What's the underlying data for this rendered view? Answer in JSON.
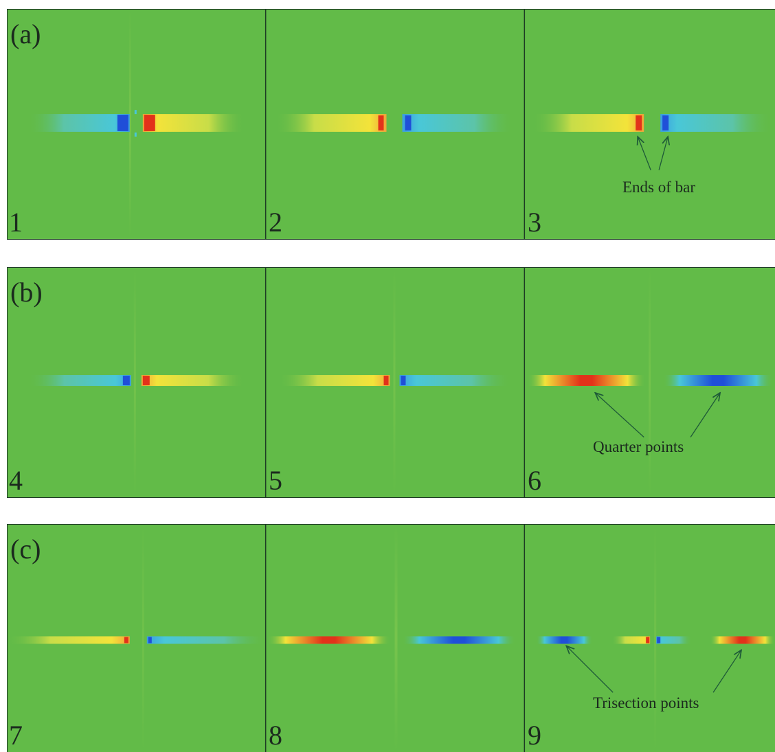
{
  "panel_groups": [
    {
      "label": "(a)",
      "panels": [
        "1",
        "2",
        "3"
      ],
      "annotation": "Ends of bar"
    },
    {
      "label": "(b)",
      "panels": [
        "4",
        "5",
        "6"
      ],
      "annotation": "Quarter points"
    },
    {
      "label": "(c)",
      "panels": [
        "7",
        "8",
        "9"
      ],
      "annotation": "Trisection points"
    }
  ],
  "colors": {
    "background": "#62bb48",
    "border": "#1d3a24",
    "positive": "#e2321a",
    "positive_edge": "#f3e33a",
    "negative": "#1f4fd8",
    "negative_edge": "#49c7d8",
    "arrow": "#1e5a38"
  }
}
